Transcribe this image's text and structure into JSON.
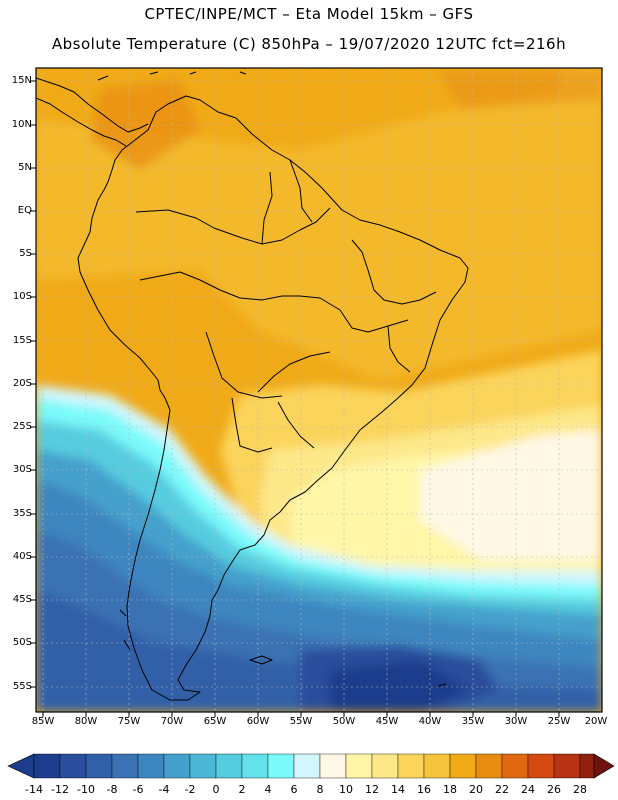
{
  "header": {
    "line1": "CPTEC/INPE/MCT –  Eta Model 15km – GFS",
    "line2": "Absolute Temperature (C) 850hPa – 19/07/2020 12UTC fct=216h"
  },
  "map": {
    "lat_labels": [
      "15N",
      "10N",
      "5N",
      "EQ",
      "5S",
      "10S",
      "15S",
      "20S",
      "25S",
      "30S",
      "35S",
      "40S",
      "45S",
      "50S",
      "55S"
    ],
    "lon_labels": [
      "85W",
      "80W",
      "75W",
      "70W",
      "65W",
      "60W",
      "55W",
      "50W",
      "45W",
      "40W",
      "35W",
      "30W",
      "25W",
      "20W"
    ]
  },
  "colorbar": {
    "labels": [
      "-14",
      "-12",
      "-10",
      "-8",
      "-6",
      "-4",
      "-2",
      "0",
      "2",
      "4",
      "6",
      "8",
      "10",
      "12",
      "14",
      "16",
      "18",
      "20",
      "22",
      "24",
      "26",
      "28"
    ],
    "colors": [
      "#1e3c8c",
      "#2a4e9c",
      "#3260a8",
      "#3a72b4",
      "#3e86bf",
      "#44a0cc",
      "#4cb8d6",
      "#56ccdf",
      "#64e2ec",
      "#7cfafa",
      "#d2f6fc",
      "#fff8e6",
      "#fff6a8",
      "#fde88a",
      "#fbd45c",
      "#f6c43c",
      "#f0aa18",
      "#e88c12",
      "#e06810",
      "#d44a10",
      "#b83214",
      "#92200e",
      "#6e1410"
    ]
  }
}
